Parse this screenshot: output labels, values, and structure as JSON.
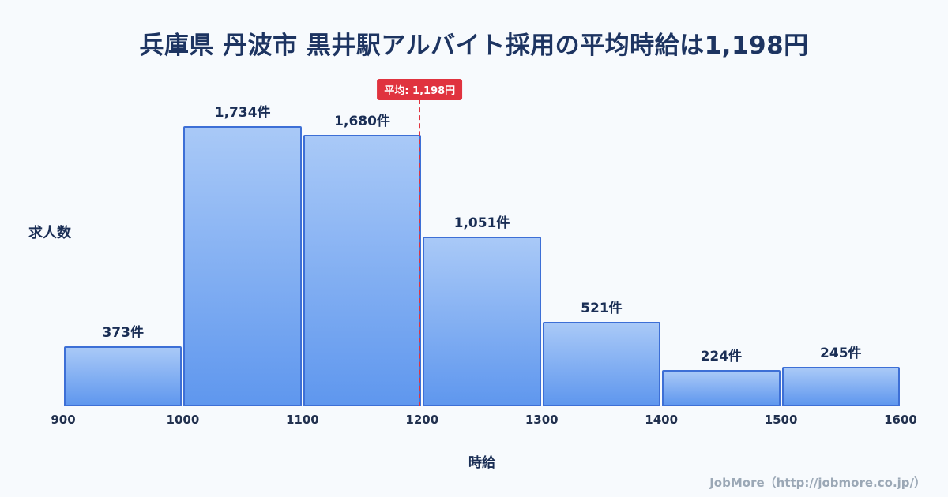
{
  "page": {
    "title": "兵庫県 丹波市 黒井駅アルバイト採用の平均時給は1,198円",
    "footer_credit": "JobMore（http://jobmore.co.jp/）"
  },
  "chart_data": {
    "type": "bar",
    "subtype": "histogram",
    "title": "兵庫県 丹波市 黒井駅アルバイト採用の平均時給は1,198円",
    "xlabel": "時給",
    "ylabel": "求人数",
    "bin_edges": [
      900,
      1000,
      1100,
      1200,
      1300,
      1400,
      1500,
      1600
    ],
    "values": [
      373,
      1734,
      1680,
      1051,
      521,
      224,
      245
    ],
    "value_labels": [
      "373件",
      "1,734件",
      "1,680件",
      "1,051件",
      "521件",
      "224件",
      "245件"
    ],
    "average_value": 1198,
    "average_label": "平均: 1,198円",
    "xlim": [
      900,
      1600
    ],
    "ylim": [
      0,
      1734
    ],
    "grid": false,
    "legend": false,
    "colors": {
      "background": "#f7fafd",
      "bar_fill_top": "#a9c9f7",
      "bar_fill_bottom": "#5f97ee",
      "bar_border": "#3d6fd6",
      "average_line": "#e0333f",
      "title_text": "#1d3461",
      "label_text": "#1a2e55",
      "footer_text": "#9ba8b6"
    }
  }
}
